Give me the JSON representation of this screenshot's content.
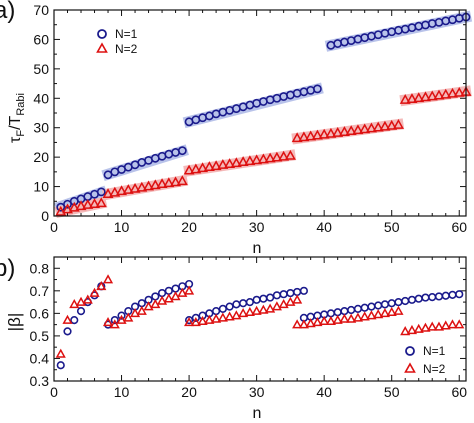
{
  "colors": {
    "n1_marker": "#1a1a8c",
    "n2_marker": "#dd1111",
    "n1_band": "#b9c3ea",
    "n2_band": "#f4b9b9",
    "axis": "#111111"
  },
  "chart_data": [
    {
      "panel_label": "a)",
      "type": "scatter",
      "xlabel": "n",
      "ylabel_main": "τ",
      "ylabel_sub1": "F",
      "ylabel_mid": "/T",
      "ylabel_sub2": "Rabi",
      "xlim": [
        0,
        61
      ],
      "ylim": [
        0,
        70
      ],
      "xticks": [
        0,
        10,
        20,
        30,
        40,
        50,
        60
      ],
      "yticks": [
        0,
        10,
        20,
        30,
        40,
        50,
        60,
        70
      ],
      "xtick_labels": [
        "0",
        "10",
        "20",
        "30",
        "40",
        "50",
        "60"
      ],
      "ytick_labels": [
        "0",
        "10",
        "20",
        "30",
        "40",
        "50",
        "60",
        "70"
      ],
      "legend_placement": "top-left",
      "series": [
        {
          "name": "N=1",
          "marker": "circle",
          "segments": [
            {
              "n": [
                1,
                2,
                3,
                4,
                5,
                6,
                7
              ],
              "y": [
                3.0,
                4.0,
                5.0,
                5.8,
                6.6,
                7.4,
                8.2
              ]
            },
            {
              "n": [
                8,
                9,
                10,
                11,
                12,
                13,
                14,
                15,
                16,
                17,
                18,
                19
              ],
              "y": [
                14.0,
                15.0,
                15.8,
                16.6,
                17.4,
                18.2,
                18.9,
                19.6,
                20.3,
                21.0,
                21.6,
                22.2
              ]
            },
            {
              "n": [
                20,
                21,
                22,
                23,
                24,
                25,
                26,
                27,
                28,
                29,
                30,
                31,
                32,
                33,
                34,
                35,
                36,
                37,
                38,
                39
              ],
              "y": [
                32.0,
                32.7,
                33.4,
                34.0,
                34.7,
                35.3,
                35.9,
                36.5,
                37.1,
                37.7,
                38.3,
                38.9,
                39.5,
                40.0,
                40.6,
                41.1,
                41.7,
                42.2,
                42.7,
                43.2
              ]
            },
            {
              "n": [
                41,
                42,
                43,
                44,
                45,
                46,
                47,
                48,
                49,
                50,
                51,
                52,
                53,
                54,
                55,
                56,
                57,
                58,
                59,
                60,
                61
              ],
              "y": [
                58.0,
                58.6,
                59.1,
                59.6,
                60.1,
                60.6,
                61.1,
                61.6,
                62.1,
                62.6,
                63.1,
                63.5,
                64.0,
                64.5,
                64.9,
                65.4,
                65.8,
                66.3,
                66.7,
                67.2,
                67.6
              ]
            }
          ]
        },
        {
          "name": "N=2",
          "marker": "triangle",
          "segments": [
            {
              "n": [
                1,
                2,
                3,
                4,
                5,
                6,
                7
              ],
              "y": [
                1.5,
                2.3,
                2.9,
                3.4,
                3.8,
                4.1,
                4.4
              ]
            },
            {
              "n": [
                8,
                9,
                10,
                11,
                12,
                13,
                14,
                15,
                16,
                17,
                18,
                19
              ],
              "y": [
                7.5,
                8.0,
                8.5,
                8.9,
                9.3,
                9.7,
                10.1,
                10.5,
                10.9,
                11.2,
                11.5,
                11.9
              ]
            },
            {
              "n": [
                20,
                21,
                22,
                23,
                24,
                25,
                26,
                27,
                28,
                29,
                30,
                31,
                32,
                33,
                34,
                35
              ],
              "y": [
                15.5,
                15.9,
                16.3,
                16.7,
                17.0,
                17.4,
                17.7,
                18.0,
                18.4,
                18.7,
                19.0,
                19.3,
                19.6,
                19.9,
                20.2,
                20.5
              ]
            },
            {
              "n": [
                36,
                37,
                38,
                39,
                40,
                41,
                42,
                43,
                44,
                45,
                46,
                47,
                48,
                49,
                50,
                51
              ],
              "y": [
                26.5,
                26.8,
                27.1,
                27.4,
                27.7,
                28.0,
                28.3,
                28.6,
                28.9,
                29.2,
                29.5,
                29.8,
                30.1,
                30.4,
                30.7,
                31.0
              ]
            },
            {
              "n": [
                52,
                53,
                54,
                55,
                56,
                57,
                58,
                59,
                60,
                61
              ],
              "y": [
                39.5,
                39.8,
                40.1,
                40.4,
                40.7,
                41.0,
                41.3,
                41.6,
                41.9,
                42.2
              ]
            }
          ]
        }
      ]
    },
    {
      "panel_label": "b)",
      "type": "scatter",
      "xlabel": "n",
      "ylabel": "|β|",
      "xlim": [
        0,
        61
      ],
      "ylim": [
        0.3,
        0.85
      ],
      "xticks": [
        0,
        10,
        20,
        30,
        40,
        50,
        60
      ],
      "yticks": [
        0.3,
        0.4,
        0.5,
        0.6,
        0.7,
        0.8
      ],
      "xtick_labels": [
        "0",
        "10",
        "20",
        "30",
        "40",
        "50",
        "60"
      ],
      "ytick_labels": [
        "0.3",
        "0.4",
        "0.5",
        "0.6",
        "0.7",
        "0.8"
      ],
      "legend_placement": "bottom-right",
      "series": [
        {
          "name": "N=1",
          "marker": "circle",
          "segments": [
            {
              "n": [
                1,
                2,
                3,
                4,
                5,
                6,
                7
              ],
              "y": [
                0.37,
                0.52,
                0.57,
                0.61,
                0.65,
                0.68,
                0.72
              ]
            },
            {
              "n": [
                8,
                9,
                10,
                11,
                12,
                13,
                14,
                15,
                16,
                17,
                18,
                19,
                20
              ],
              "y": [
                0.55,
                0.57,
                0.59,
                0.61,
                0.63,
                0.645,
                0.66,
                0.675,
                0.69,
                0.7,
                0.71,
                0.72,
                0.73
              ]
            },
            {
              "n": [
                20,
                21,
                22,
                23,
                24,
                25,
                26,
                27,
                28,
                29,
                30,
                31,
                32,
                33,
                34,
                35,
                36,
                37
              ],
              "y": [
                0.57,
                0.58,
                0.59,
                0.6,
                0.61,
                0.62,
                0.63,
                0.64,
                0.645,
                0.65,
                0.66,
                0.665,
                0.67,
                0.68,
                0.685,
                0.69,
                0.695,
                0.7
              ]
            },
            {
              "n": [
                37,
                38,
                39,
                40,
                41,
                42,
                43,
                44,
                45,
                46,
                47,
                48,
                49,
                50,
                51,
                52,
                53,
                54,
                55,
                56,
                57,
                58,
                59,
                60
              ],
              "y": [
                0.58,
                0.585,
                0.59,
                0.595,
                0.6,
                0.605,
                0.61,
                0.615,
                0.62,
                0.625,
                0.63,
                0.635,
                0.64,
                0.645,
                0.65,
                0.655,
                0.66,
                0.665,
                0.67,
                0.672,
                0.675,
                0.678,
                0.682,
                0.685
              ]
            }
          ]
        },
        {
          "name": "N=2",
          "marker": "triangle",
          "segments": [
            {
              "n": [
                1,
                2,
                3,
                4,
                5,
                6,
                7,
                8
              ],
              "y": [
                0.42,
                0.57,
                0.64,
                0.65,
                0.66,
                0.69,
                0.72,
                0.75
              ]
            },
            {
              "n": [
                8,
                9,
                10,
                11,
                12,
                13,
                14,
                15,
                16,
                17,
                18,
                19,
                20
              ],
              "y": [
                0.56,
                0.55,
                0.57,
                0.58,
                0.6,
                0.61,
                0.63,
                0.64,
                0.655,
                0.665,
                0.675,
                0.69,
                0.7
              ]
            },
            {
              "n": [
                20,
                21,
                22,
                23,
                24,
                25,
                26,
                27,
                28,
                29,
                30,
                31,
                32,
                33,
                34,
                35,
                36
              ],
              "y": [
                0.56,
                0.56,
                0.565,
                0.57,
                0.575,
                0.58,
                0.585,
                0.59,
                0.6,
                0.605,
                0.61,
                0.615,
                0.62,
                0.63,
                0.64,
                0.65,
                0.66
              ]
            },
            {
              "n": [
                36,
                37,
                38,
                39,
                40,
                41,
                42,
                43,
                44,
                45,
                46,
                47,
                48,
                49,
                50,
                51
              ],
              "y": [
                0.55,
                0.55,
                0.555,
                0.56,
                0.565,
                0.565,
                0.57,
                0.575,
                0.575,
                0.58,
                0.585,
                0.59,
                0.595,
                0.6,
                0.605,
                0.61
              ]
            },
            {
              "n": [
                52,
                53,
                54,
                55,
                56,
                57,
                58,
                59,
                60
              ],
              "y": [
                0.52,
                0.525,
                0.53,
                0.535,
                0.54,
                0.54,
                0.545,
                0.55,
                0.55
              ]
            }
          ]
        }
      ]
    }
  ]
}
